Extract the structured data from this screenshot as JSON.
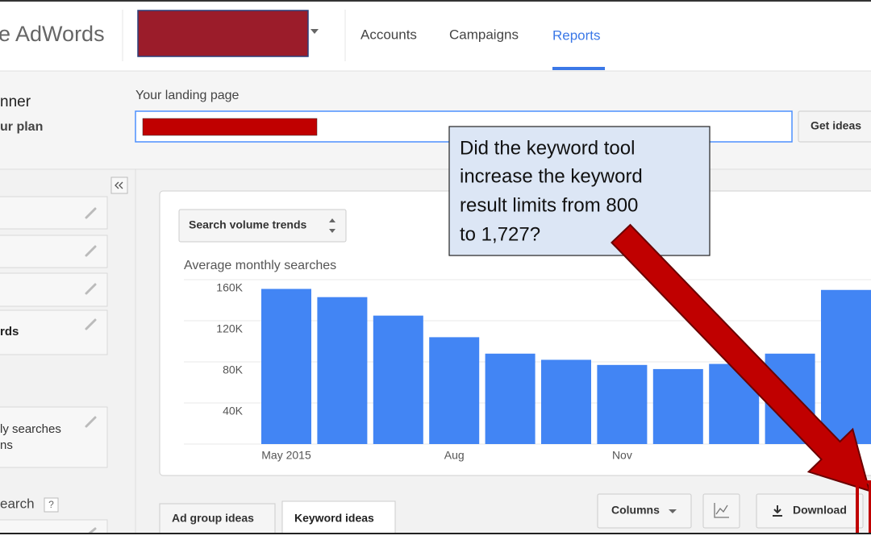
{
  "header": {
    "logo": "e AdWords",
    "nav": [
      "Accounts",
      "Campaigns",
      "Reports"
    ]
  },
  "planner": {
    "title": "nner",
    "subtitle": "ur plan"
  },
  "landing": {
    "label": "Your landing page",
    "button": "Get ideas"
  },
  "sidebar": {
    "items": [
      "rds",
      "ly searches",
      "ns",
      "earch"
    ],
    "help": "?"
  },
  "chart": {
    "type": "bar",
    "selector": "Search volume trends",
    "title": "Average monthly searches",
    "color": "#4285f4",
    "categories": [
      "May 2015",
      null,
      null,
      "Aug",
      null,
      null,
      "Nov",
      null,
      null,
      null,
      null
    ],
    "values": [
      151000,
      143000,
      125000,
      104000,
      88000,
      82000,
      77000,
      73000,
      78000,
      88000,
      150000
    ],
    "ylim": [
      0,
      160000
    ],
    "yticks": [
      {
        "value": 40000,
        "label": "40K"
      },
      {
        "value": 80000,
        "label": "80K"
      },
      {
        "value": 120000,
        "label": "120K"
      },
      {
        "value": 160000,
        "label": "160K"
      }
    ],
    "grid": true
  },
  "tabs": [
    "Ad group ideas",
    "Keyword ideas"
  ],
  "toolbar": {
    "columns": "Columns",
    "download": "Download"
  },
  "callout": {
    "lines": [
      "Did the keyword tool",
      "increase the keyword",
      "result limits from 800",
      "to 1,727?"
    ]
  }
}
